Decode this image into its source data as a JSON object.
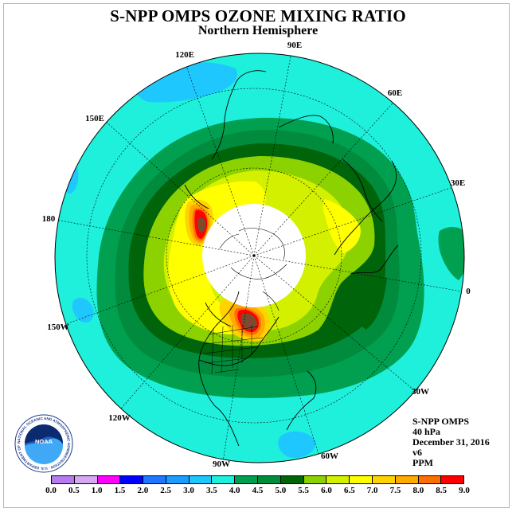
{
  "title": "S-NPP OMPS OZONE MIXING RATIO",
  "subtitle": "Northern Hemisphere",
  "info": {
    "instrument": "S-NPP OMPS",
    "level": "40 hPa",
    "date": "December 31, 2016",
    "version": "v6",
    "units": "PPM"
  },
  "logo": {
    "text": "NOAA",
    "ring_text": "NATIONAL OCEANIC AND ATMOSPHERIC ADMINISTRATION · U.S. DEPARTMENT OF COMMERCE"
  },
  "longitude_labels": [
    {
      "text": "90E",
      "angle": 90
    },
    {
      "text": "60E",
      "angle": 60
    },
    {
      "text": "30E",
      "angle": 30
    },
    {
      "text": "0",
      "angle": 0
    },
    {
      "text": "30W",
      "angle": -30
    },
    {
      "text": "60W",
      "angle": -60
    },
    {
      "text": "90W",
      "angle": -90
    },
    {
      "text": "120W",
      "angle": -120
    },
    {
      "text": "150W",
      "angle": -150
    },
    {
      "text": "180",
      "angle": 180
    },
    {
      "text": "150E",
      "angle": 150
    },
    {
      "text": "120E",
      "angle": 120
    }
  ],
  "colorbar": {
    "ticks": [
      "0.0",
      "0.5",
      "1.0",
      "1.5",
      "2.0",
      "2.5",
      "3.0",
      "3.5",
      "4.0",
      "4.5",
      "5.0",
      "5.5",
      "6.0",
      "6.5",
      "7.0",
      "7.5",
      "8.0",
      "8.5",
      "9.0"
    ],
    "colors": [
      "#b57cf0",
      "#d4a9f0",
      "#ff00ff",
      "#0000ff",
      "#1e78ff",
      "#1e9bff",
      "#1ec8ff",
      "#1ef0dc",
      "#00a050",
      "#008c3c",
      "#00640a",
      "#8cd200",
      "#d2f000",
      "#ffff00",
      "#ffd200",
      "#ffaa00",
      "#ff6e00",
      "#ff0000",
      "#7a4b2e"
    ]
  },
  "map_colors": {
    "background": "#1ef0dc",
    "low": "#1ec8ff",
    "band_outer": "#00a050",
    "band_mid": "#008c3c",
    "band_inner": "#00640a",
    "level_55": "#8cd200",
    "level_60": "#d2f000",
    "level_65": "#ffff00",
    "level_70": "#ffd200",
    "level_75": "#ffaa00",
    "level_80": "#ff6e00",
    "level_85": "#ff0000",
    "level_90": "#7a4b2e",
    "no_data": "#ffffff"
  }
}
